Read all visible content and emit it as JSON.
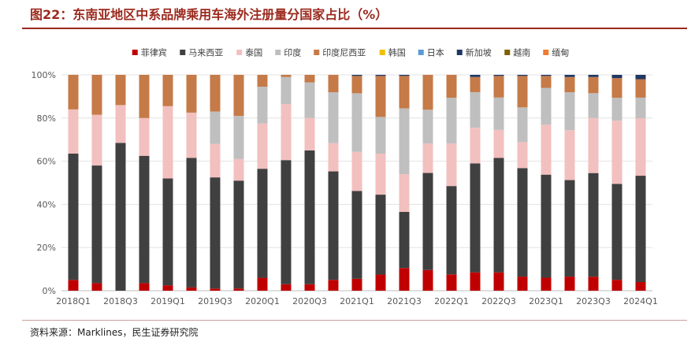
{
  "page": {
    "title": "图22：东南亚地区中系品牌乘用车海外注册量分国家占比（%）",
    "source": "资料来源：Marklines，民生证券研究院"
  },
  "chart_data": {
    "type": "bar",
    "stacked": true,
    "title": "东南亚地区中系品牌乘用车海外注册量分国家占比（%）",
    "xlabel": "",
    "ylabel": "",
    "ylim": [
      0,
      100
    ],
    "yticks": [
      "0%",
      "20%",
      "40%",
      "60%",
      "80%",
      "100%"
    ],
    "legend_position": "top",
    "categories": [
      "2018Q1",
      "2018Q2",
      "2018Q3",
      "2018Q4",
      "2019Q1",
      "2019Q2",
      "2019Q3",
      "2019Q4",
      "2020Q1",
      "2020Q2",
      "2020Q3",
      "2020Q4",
      "2021Q1",
      "2021Q2",
      "2021Q3",
      "2021Q4",
      "2022Q1",
      "2022Q2",
      "2022Q3",
      "2022Q4",
      "2023Q1",
      "2023Q2",
      "2023Q3",
      "2023Q4",
      "2024Q1"
    ],
    "xtick_labels": [
      "2018Q1",
      "2018Q3",
      "2019Q1",
      "2019Q3",
      "2020Q1",
      "2020Q3",
      "2021Q1",
      "2021Q3",
      "2022Q1",
      "2022Q3",
      "2023Q1",
      "2023Q3",
      "2024Q1"
    ],
    "series": [
      {
        "name": "菲律宾",
        "color": "#c00000",
        "values": [
          5,
          3.5,
          0,
          3.5,
          2.5,
          1.5,
          1,
          1,
          6,
          3,
          3,
          5,
          5.5,
          7.5,
          10.5,
          9.5,
          7.5,
          8.5,
          8.5,
          6.5,
          6,
          6.5,
          6.5,
          5,
          4
        ]
      },
      {
        "name": "马来西亚",
        "color": "#404040",
        "values": [
          58.5,
          54.5,
          68.5,
          59,
          49.5,
          60,
          51.5,
          50,
          50.5,
          57.5,
          62,
          50,
          40.5,
          37,
          26,
          44.5,
          40.5,
          50.5,
          53,
          50,
          47.5,
          44.5,
          48,
          44,
          49
        ]
      },
      {
        "name": "泰国",
        "color": "#f2c0bf",
        "values": [
          20.5,
          23.5,
          17.5,
          17.5,
          33.5,
          21,
          15.5,
          10,
          21,
          26,
          15,
          13,
          18,
          19,
          17.5,
          13.5,
          19.5,
          16.5,
          13,
          12,
          23,
          23,
          25.5,
          29,
          26.5
        ]
      },
      {
        "name": "印度",
        "color": "#bfbfbf",
        "values": [
          0,
          0,
          0,
          0,
          0,
          0,
          15,
          20,
          17,
          12.5,
          16.5,
          23.5,
          27,
          17,
          30.5,
          15.5,
          21,
          16.5,
          15,
          16,
          17,
          17.5,
          11.5,
          10.5,
          9.5
        ]
      },
      {
        "name": "印度尼西亚",
        "color": "#c57a47",
        "values": [
          16,
          18.5,
          14,
          20,
          14.5,
          17.5,
          17,
          19,
          5.5,
          1,
          3.5,
          8,
          8,
          19,
          15,
          16,
          10.5,
          7,
          10,
          14.5,
          5.5,
          7,
          7.5,
          9,
          8.5
        ]
      },
      {
        "name": "韩国",
        "color": "#f0c000",
        "values": [
          0,
          0,
          0,
          0,
          0,
          0,
          0,
          0,
          0,
          0,
          0,
          0,
          0,
          0,
          0,
          0,
          0,
          0,
          0,
          0,
          0,
          0,
          0,
          0,
          0
        ]
      },
      {
        "name": "日本",
        "color": "#5b9bd5",
        "values": [
          0,
          0,
          0,
          0,
          0,
          0,
          0,
          0,
          0,
          0,
          0,
          0,
          0,
          0,
          0,
          0,
          0,
          0,
          0,
          0,
          0,
          0,
          0,
          0,
          0
        ]
      },
      {
        "name": "新加坡",
        "color": "#203864",
        "values": [
          0,
          0,
          0,
          0,
          0,
          0,
          0,
          0,
          0,
          0,
          0,
          0,
          0.5,
          0.5,
          0.5,
          0,
          0,
          1,
          0.5,
          0.5,
          0.5,
          1,
          1,
          1.5,
          2
        ]
      },
      {
        "name": "越南",
        "color": "#806000",
        "values": [
          0,
          0,
          0,
          0,
          0,
          0,
          0,
          0,
          0,
          0,
          0,
          0,
          0,
          0,
          0,
          0,
          0,
          0,
          0,
          0,
          0,
          0,
          0,
          0,
          0
        ]
      },
      {
        "name": "缅甸",
        "color": "#ed7d31",
        "values": [
          0,
          0,
          0,
          0,
          0,
          0,
          0,
          0,
          0,
          0,
          0,
          0,
          0,
          0,
          0,
          0,
          0,
          0,
          0,
          0,
          0,
          0,
          0,
          0,
          0
        ]
      }
    ]
  }
}
